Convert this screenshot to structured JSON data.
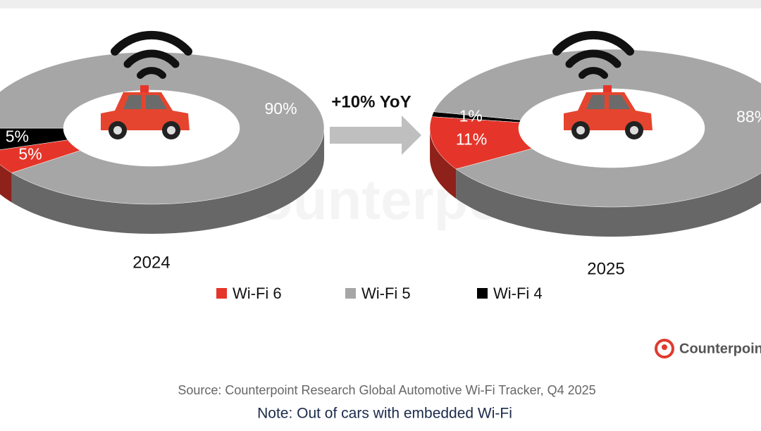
{
  "chart_data": {
    "type": "donut3d",
    "categories": [
      "Wi-Fi 6",
      "Wi-Fi 5",
      "Wi-Fi 4"
    ],
    "colors": [
      "#e5352a",
      "#a6a6a6",
      "#000000"
    ],
    "series": [
      {
        "name": "2024",
        "values": [
          5,
          90,
          5
        ],
        "value_labels": [
          "5%",
          "90%",
          "5%"
        ]
      },
      {
        "name": "2025",
        "values": [
          11,
          88,
          1
        ],
        "value_labels": [
          "11%",
          "88%",
          "1%"
        ]
      }
    ],
    "annotation": "+10% YoY"
  },
  "watermark": "Counterpoint",
  "logo": "Counterpoint",
  "source": "Source: Counterpoint Research Global Automotive Wi-Fi Tracker, Q4 2025",
  "note": "Note: Out of cars with embedded Wi-Fi"
}
